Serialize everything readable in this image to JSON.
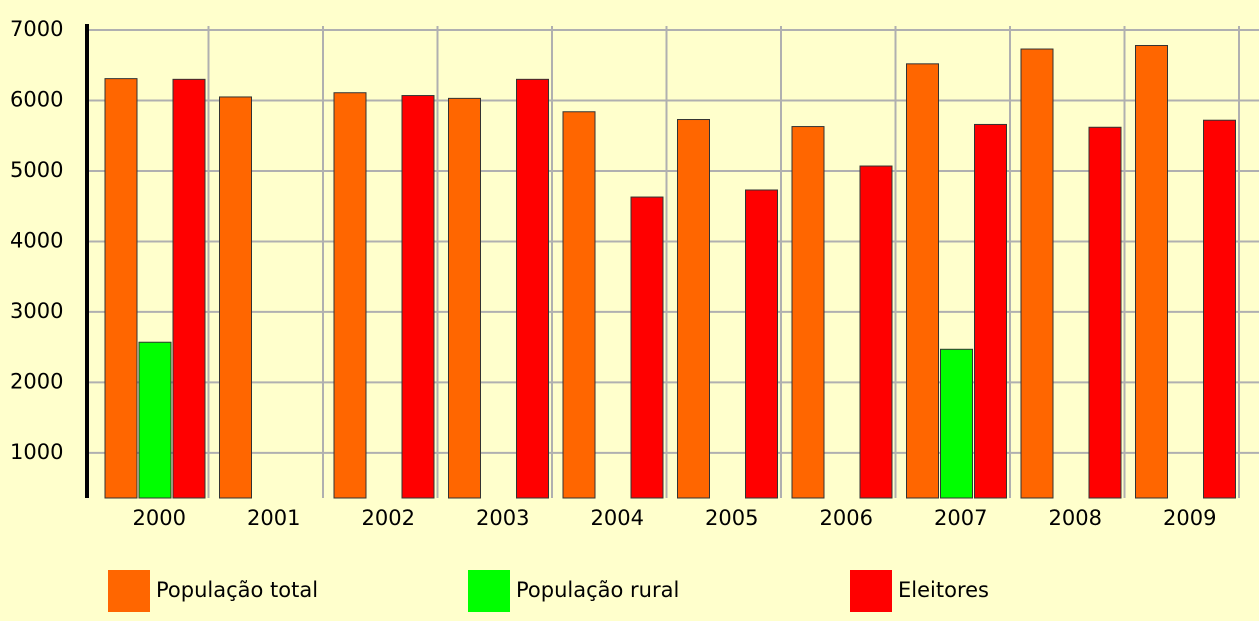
{
  "chart_data": {
    "type": "bar",
    "categories": [
      "2000",
      "2001",
      "2002",
      "2003",
      "2004",
      "2005",
      "2006",
      "2007",
      "2008",
      "2009"
    ],
    "series": [
      {
        "name": "População total",
        "color": "#ff6600",
        "values": [
          6310,
          6050,
          6110,
          6030,
          5840,
          5730,
          5630,
          6520,
          6730,
          6780
        ]
      },
      {
        "name": "População rural",
        "color": "#00ff00",
        "values": [
          2570,
          null,
          null,
          null,
          null,
          null,
          null,
          2470,
          null,
          null
        ]
      },
      {
        "name": "Eleitores",
        "color": "#ff0000",
        "values": [
          6300,
          null,
          6070,
          6300,
          4630,
          4730,
          5070,
          5660,
          5620,
          5720
        ]
      }
    ],
    "ylim": [
      360,
      7000
    ],
    "yticks": [
      1000,
      2000,
      3000,
      4000,
      5000,
      6000,
      7000
    ],
    "grid": true
  }
}
